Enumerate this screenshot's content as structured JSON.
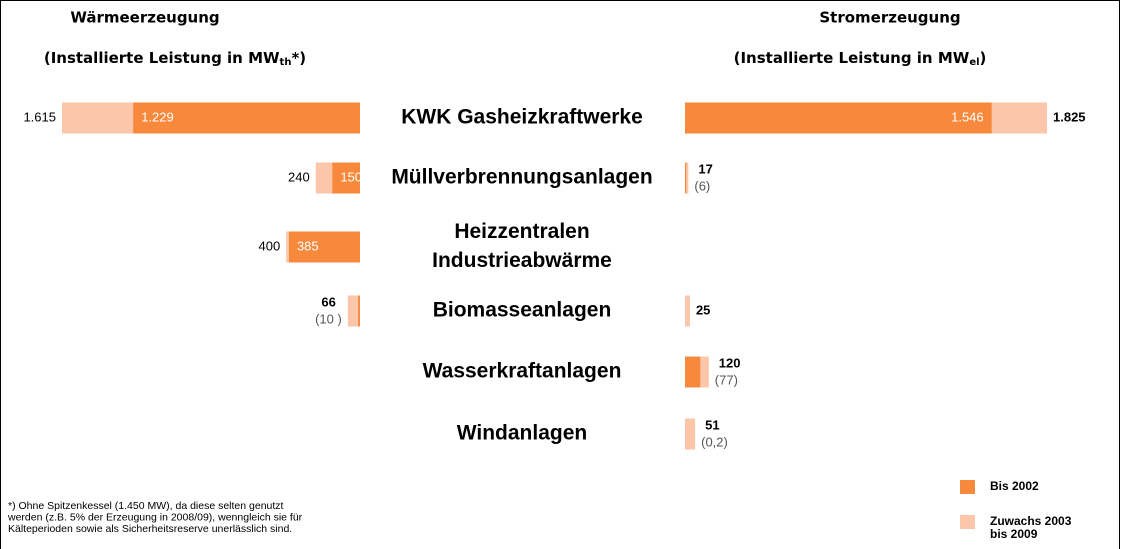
{
  "categories": [
    [
      "KWK Gasheizkraftwerke"
    ],
    [
      "Müllverbrennungsanlagen"
    ],
    [
      "Heizzentralen",
      "Industrieabwärme"
    ],
    [
      "Biomasseanlagen"
    ],
    [
      "Wasserkraftanlagen"
    ],
    [
      "Windanlagen"
    ]
  ],
  "chart_data": [
    {
      "type": "bar",
      "direction": "left",
      "title": "Wärmeerzeugung",
      "subtitle": [
        "(Installierte Leistung in MW",
        "th",
        "*)"
      ],
      "values": [
        1615,
        240,
        400,
        66,
        null,
        null
      ],
      "value_labels": [
        "1.615",
        "240",
        "400",
        "66",
        null,
        null
      ],
      "base_values": [
        1229,
        150,
        385,
        10,
        null,
        null
      ],
      "base_value_labels": [
        "1.229",
        "150",
        "385",
        "(10 )",
        null,
        null
      ],
      "xlim": [
        0,
        1615
      ],
      "color": "#fbc6a9",
      "base_color": "#f7893c"
    },
    {
      "type": "bar",
      "direction": "right",
      "title": "Stromerzeugung",
      "subtitle": [
        "(Installierte Leistung in MW",
        "el",
        ")"
      ],
      "values": [
        1825,
        17,
        null,
        25,
        120,
        51
      ],
      "value_labels": [
        "1.825",
        "17",
        null,
        "25",
        "120",
        "51"
      ],
      "base_values": [
        1546,
        6,
        null,
        null,
        77,
        0.2
      ],
      "base_value_labels": [
        "1.546",
        "(6)",
        null,
        null,
        "(77)",
        "(0,2)"
      ],
      "xlim": [
        0,
        1825
      ],
      "color": "#fbc6a9",
      "base_color": "#f7893c"
    }
  ],
  "legend": [
    {
      "label": [
        "Bis 2002"
      ],
      "color": "#f7893c"
    },
    {
      "label": [
        "Zuwachs 2003",
        "bis 2009"
      ],
      "color": "#fbc6a9"
    }
  ],
  "footnote": [
    "*) Ohne Spitzenkessel (1.450 MW), da diese selten genutzt",
    "werden (z.B. 5% der Erzeugung in 2008/09), wenngleich sie für",
    "Kälteperioden sowie als Sicherheitsreserve unerlässlich sind."
  ]
}
